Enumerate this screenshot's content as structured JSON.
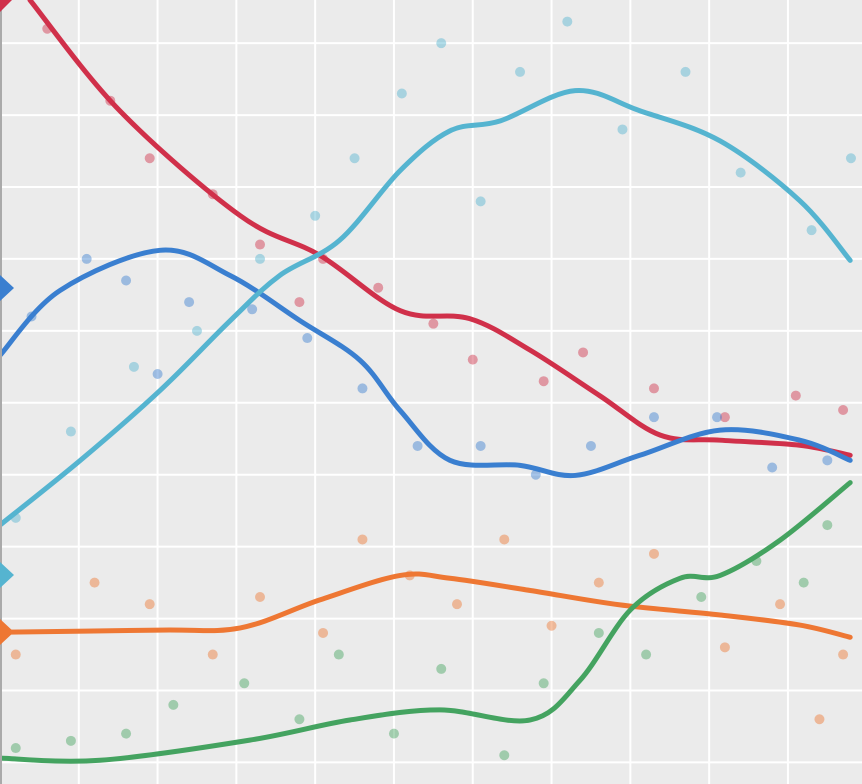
{
  "chart_data": {
    "type": "scatter",
    "grid": true,
    "background": "#ebebeb",
    "xlim": [
      0,
      10.94
    ],
    "ylim": [
      -0.3,
      10.6
    ],
    "xticks": [
      1,
      2,
      3,
      4,
      5,
      6,
      7,
      8,
      9,
      10
    ],
    "yticks": [
      0,
      1,
      2,
      3,
      4,
      5,
      6,
      7,
      8,
      9,
      10
    ],
    "series": [
      {
        "color": "#d0304a",
        "line": {
          "x": [
            0.38,
            1.52,
            3.05,
            4.06,
            5.08,
            5.96,
            6.73,
            7.61,
            8.38,
            9.14,
            10.15,
            10.79
          ],
          "values": [
            10.6,
            9.06,
            7.6,
            7.05,
            6.28,
            6.17,
            5.73,
            5.1,
            4.55,
            4.48,
            4.41,
            4.27
          ]
        },
        "points": {
          "x": [
            0.6,
            1.4,
            1.9,
            2.7,
            3.3,
            4.1,
            4.8,
            5.5,
            6.0,
            6.9,
            7.4,
            8.3,
            9.2,
            10.1,
            10.7,
            3.8
          ],
          "y": [
            10.2,
            9.2,
            8.4,
            7.9,
            7.2,
            7.0,
            6.6,
            6.1,
            5.6,
            5.3,
            5.7,
            5.2,
            4.8,
            5.1,
            4.9,
            6.4
          ]
        }
      },
      {
        "color": "#3a7fd0",
        "line": {
          "x": [
            0,
            0.76,
            2.03,
            2.92,
            3.81,
            4.57,
            5.08,
            5.71,
            6.6,
            7.3,
            8.12,
            9.14,
            10.15,
            10.79
          ],
          "values": [
            5.66,
            6.56,
            7.12,
            6.77,
            6.14,
            5.59,
            4.89,
            4.2,
            4.13,
            3.99,
            4.27,
            4.62,
            4.48,
            4.2
          ]
        },
        "points": {
          "x": [
            0.4,
            1.1,
            1.6,
            2.4,
            3.2,
            3.9,
            4.6,
            5.3,
            6.1,
            6.8,
            7.5,
            8.3,
            9.1,
            9.8,
            10.5,
            2.0
          ],
          "y": [
            6.2,
            7.0,
            6.7,
            6.4,
            6.3,
            5.9,
            5.2,
            4.4,
            4.4,
            4.0,
            4.4,
            4.8,
            4.8,
            4.1,
            4.2,
            5.4
          ]
        }
      },
      {
        "color": "#55b4d0",
        "line": {
          "x": [
            0,
            1.02,
            2.03,
            2.92,
            3.55,
            4.31,
            5.08,
            5.71,
            6.35,
            7.3,
            8.12,
            9.14,
            10.15,
            10.79
          ],
          "values": [
            3.3,
            4.2,
            5.17,
            6.14,
            6.77,
            7.26,
            8.23,
            8.78,
            8.92,
            9.34,
            9.06,
            8.64,
            7.81,
            6.98
          ]
        },
        "points": {
          "x": [
            0.2,
            0.9,
            1.7,
            2.5,
            3.3,
            4.0,
            4.5,
            5.1,
            5.6,
            6.6,
            7.2,
            7.9,
            8.7,
            9.4,
            10.3,
            10.8,
            6.1
          ],
          "y": [
            3.4,
            4.6,
            5.5,
            6.0,
            7.0,
            7.6,
            8.4,
            9.3,
            10.0,
            9.6,
            10.3,
            8.8,
            9.6,
            8.2,
            7.4,
            8.4,
            7.8
          ]
        }
      },
      {
        "color": "#ee7733",
        "line": {
          "x": [
            0,
            2.03,
            3.05,
            4.06,
            5.08,
            5.71,
            6.73,
            7.87,
            9.14,
            10.15,
            10.79
          ],
          "values": [
            1.81,
            1.84,
            1.87,
            2.26,
            2.6,
            2.56,
            2.39,
            2.19,
            2.05,
            1.91,
            1.74
          ]
        },
        "points": {
          "x": [
            0.2,
            1.2,
            1.9,
            2.7,
            3.3,
            4.1,
            4.6,
            5.2,
            5.8,
            6.4,
            7.0,
            7.6,
            8.3,
            9.2,
            9.9,
            10.4,
            10.7
          ],
          "y": [
            1.5,
            2.5,
            2.2,
            1.5,
            2.3,
            1.8,
            3.1,
            2.6,
            2.2,
            3.1,
            1.9,
            2.5,
            2.9,
            1.6,
            2.2,
            0.6,
            1.5
          ]
        }
      },
      {
        "color": "#44a360",
        "line": {
          "x": [
            0,
            1.27,
            3.17,
            4.44,
            5.58,
            6.73,
            7.36,
            8.0,
            8.63,
            9.14,
            9.9,
            10.79
          ],
          "values": [
            0.06,
            0.03,
            0.31,
            0.59,
            0.73,
            0.59,
            1.14,
            2.12,
            2.56,
            2.6,
            3.09,
            3.89
          ]
        },
        "points": {
          "x": [
            0.2,
            0.9,
            1.6,
            2.2,
            3.1,
            3.8,
            4.3,
            5.0,
            5.6,
            6.4,
            6.9,
            7.6,
            8.2,
            8.9,
            9.6,
            10.2,
            10.5
          ],
          "y": [
            0.2,
            0.3,
            0.4,
            0.8,
            1.1,
            0.6,
            1.5,
            0.4,
            1.3,
            0.1,
            1.1,
            1.8,
            1.5,
            2.3,
            2.8,
            2.5,
            3.3
          ]
        }
      }
    ]
  }
}
